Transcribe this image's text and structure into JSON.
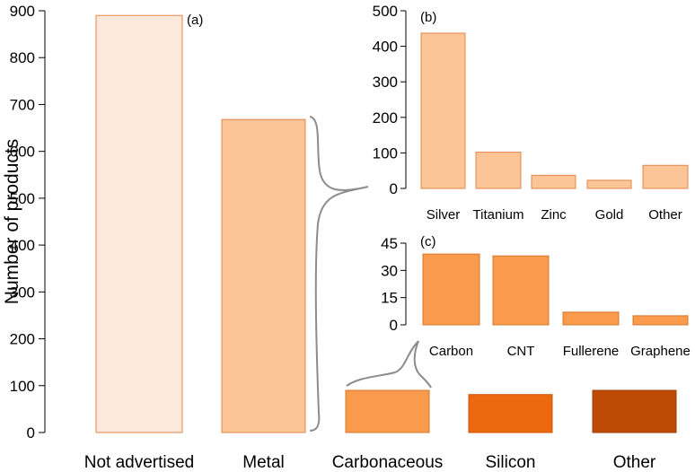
{
  "chart_data": [
    {
      "panel_label": "(a)",
      "type": "bar",
      "ylabel": "Number of products",
      "ylim": [
        0,
        900
      ],
      "yticks": [
        0,
        100,
        200,
        300,
        400,
        500,
        600,
        700,
        800,
        900
      ],
      "categories": [
        "Not advertised",
        "Metal",
        "Carbonaceous",
        "Silicon",
        "Other"
      ],
      "values": [
        890,
        668,
        90,
        81,
        90
      ],
      "colors": [
        "#fde9db",
        "#fbc597",
        "#f99a4c",
        "#ec690f",
        "#bd4b06"
      ],
      "edge_colors": [
        "#e0874a",
        "#e0874a",
        "#d2782e",
        "#c8560a",
        "#9a3c04"
      ]
    },
    {
      "panel_label": "(b)",
      "type": "bar",
      "ylim": [
        0,
        500
      ],
      "yticks": [
        0,
        100,
        200,
        300,
        400,
        500
      ],
      "categories": [
        "Silver",
        "Titanium",
        "Zinc",
        "Gold",
        "Other"
      ],
      "values": [
        437,
        102,
        37,
        23,
        65
      ],
      "color": "#fbc597",
      "edge_color": "#e0874a"
    },
    {
      "panel_label": "(c)",
      "type": "bar",
      "ylim": [
        0,
        45
      ],
      "yticks": [
        0,
        15,
        30,
        45
      ],
      "categories": [
        "Carbon",
        "CNT",
        "Fullerene",
        "Graphene"
      ],
      "values": [
        39,
        38,
        7,
        5
      ],
      "color": "#f99a4c",
      "edge_color": "#d2782e"
    }
  ]
}
